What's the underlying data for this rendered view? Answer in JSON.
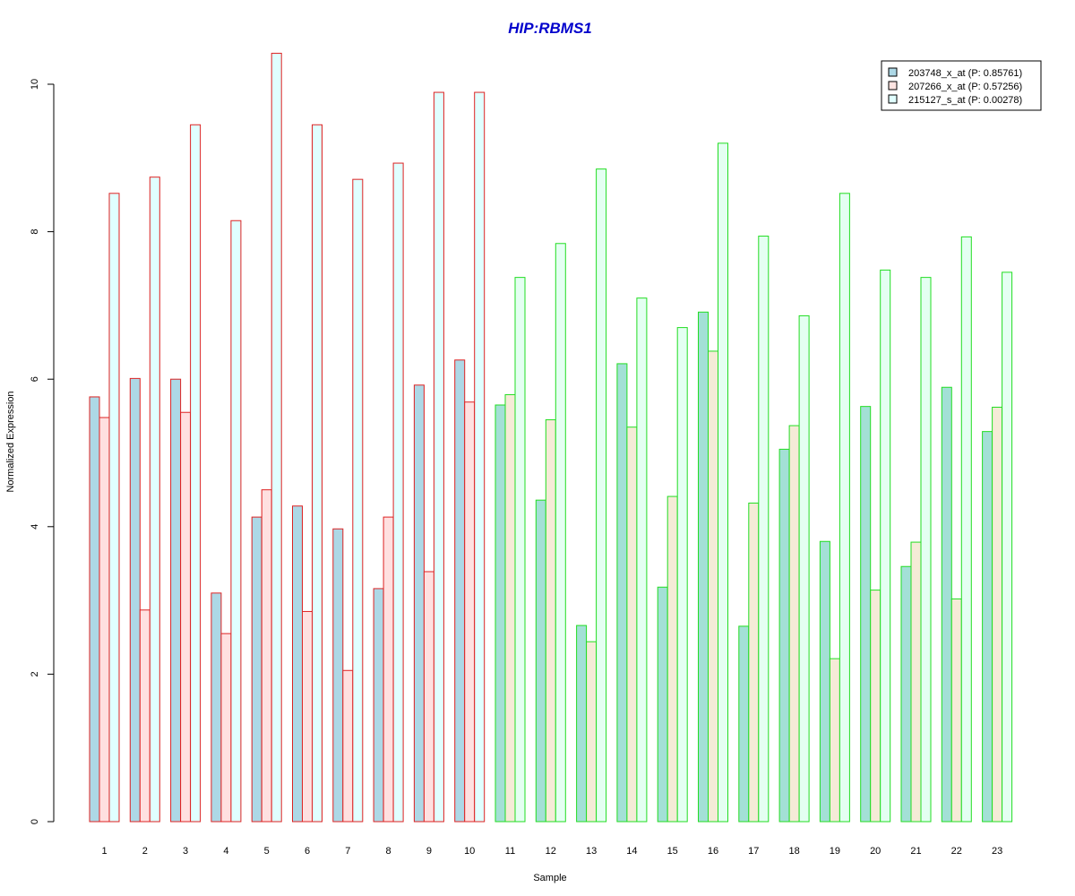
{
  "chart_data": {
    "type": "bar",
    "title": "HIP:RBMS1",
    "xlabel": "Sample",
    "ylabel": "Normalized Expression",
    "ylim": [
      0,
      10.5
    ],
    "yticks": [
      0,
      2,
      4,
      6,
      8,
      10
    ],
    "grid": false,
    "legend_position": "top-right",
    "categories": [
      "1",
      "2",
      "3",
      "4",
      "5",
      "6",
      "7",
      "8",
      "9",
      "10",
      "11",
      "12",
      "13",
      "14",
      "15",
      "16",
      "17",
      "18",
      "19",
      "20",
      "21",
      "22",
      "23"
    ],
    "group_border_colors": [
      "#dd2222",
      "#dd2222",
      "#dd2222",
      "#dd2222",
      "#dd2222",
      "#dd2222",
      "#dd2222",
      "#dd2222",
      "#dd2222",
      "#dd2222",
      "#22dd22",
      "#22dd22",
      "#22dd22",
      "#22dd22",
      "#22dd22",
      "#22dd22",
      "#22dd22",
      "#22dd22",
      "#22dd22",
      "#22dd22",
      "#22dd22",
      "#22dd22",
      "#22dd22"
    ],
    "series": [
      {
        "name": "203748_x_at (P: 0.85761)",
        "fills": {
          "group1": "#add8e6",
          "group2": "#a3e0d6"
        },
        "legend_fill": "#add8e6",
        "values": [
          5.76,
          6.01,
          6.0,
          3.1,
          4.13,
          4.28,
          3.97,
          3.16,
          5.92,
          6.26,
          5.65,
          4.36,
          2.66,
          6.21,
          3.18,
          6.91,
          2.65,
          5.05,
          3.8,
          5.63,
          3.46,
          5.89,
          5.29
        ]
      },
      {
        "name": "207266_x_at (P: 0.57256)",
        "fills": {
          "group1": "#ffe0e0",
          "group2": "#f5ebd7"
        },
        "legend_fill": "#ffe4e1",
        "values": [
          5.48,
          2.87,
          5.55,
          2.55,
          4.5,
          2.85,
          2.05,
          4.13,
          3.39,
          5.69,
          5.79,
          5.45,
          2.44,
          5.35,
          4.41,
          6.38,
          4.32,
          5.37,
          2.21,
          3.14,
          3.79,
          3.02,
          5.62
        ]
      },
      {
        "name": "215127_s_at (P: 0.00278)",
        "fills": {
          "group1": "#e0ffff",
          "group2": "#e4fff2"
        },
        "legend_fill": "#e0ffff",
        "values": [
          8.52,
          8.74,
          9.45,
          8.15,
          10.42,
          9.45,
          8.71,
          8.93,
          9.89,
          9.89,
          7.38,
          7.84,
          8.85,
          7.1,
          6.7,
          9.2,
          7.94,
          6.86,
          8.52,
          7.48,
          7.38,
          7.93,
          7.45
        ]
      }
    ]
  },
  "colors": {
    "title": "#0000cc",
    "axis": "#000000",
    "legend_border": "#000000"
  }
}
